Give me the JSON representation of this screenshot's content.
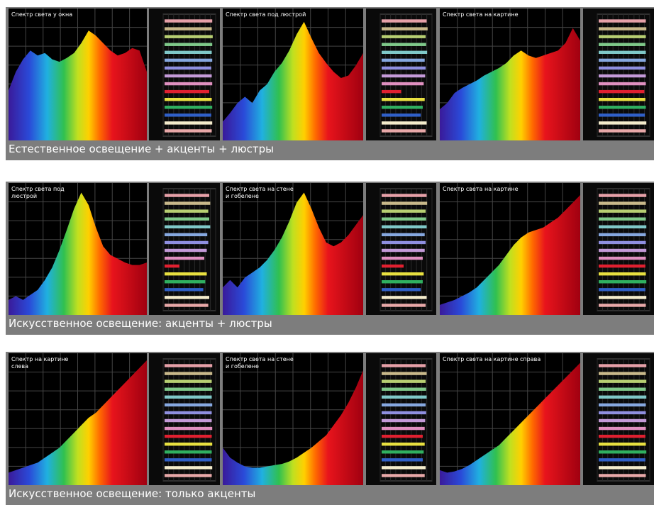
{
  "cri_colors": [
    "#e6a0a8",
    "#c8b88a",
    "#b8cf72",
    "#7fc98a",
    "#7fc8c8",
    "#86a8e0",
    "#8f8fe0",
    "#c49ad8",
    "#e090c0",
    "#e02030",
    "#e8e040",
    "#30b060",
    "#3060c8",
    "#f4eccc",
    "#e8a8a8"
  ],
  "rows": [
    {
      "caption": "Естественное освещение + акценты + люстры",
      "panels": [
        {
          "title": "Спектр света у окна",
          "spectrum": [
            40,
            55,
            65,
            72,
            68,
            70,
            65,
            63,
            66,
            70,
            78,
            88,
            84,
            78,
            72,
            68,
            70,
            74,
            72,
            55
          ],
          "cri": [
            96,
            95,
            97,
            96,
            95,
            96,
            94,
            95,
            96,
            90,
            95,
            96,
            94,
            96,
            95
          ]
        },
        {
          "title": "Спектр света под люстрой",
          "spectrum": [
            15,
            22,
            30,
            35,
            30,
            40,
            45,
            55,
            62,
            72,
            85,
            95,
            82,
            70,
            62,
            55,
            50,
            52,
            60,
            70
          ],
          "cri": [
            92,
            94,
            90,
            91,
            93,
            88,
            90,
            89,
            86,
            40,
            88,
            84,
            80,
            92,
            90
          ]
        },
        {
          "title": "Спектр света на картине",
          "spectrum": [
            25,
            30,
            38,
            42,
            45,
            48,
            52,
            55,
            58,
            62,
            68,
            72,
            68,
            66,
            68,
            70,
            72,
            78,
            90,
            80
          ],
          "cri": [
            95,
            96,
            95,
            94,
            95,
            95,
            94,
            95,
            95,
            92,
            94,
            95,
            93,
            96,
            95
          ]
        }
      ]
    },
    {
      "caption": "Искусственное освещение: акценты + люстры",
      "panels": [
        {
          "title": "Спектр света под\nлюстрой",
          "spectrum": [
            12,
            15,
            12,
            16,
            20,
            28,
            38,
            52,
            68,
            85,
            98,
            88,
            70,
            55,
            48,
            45,
            42,
            40,
            40,
            42
          ],
          "cri": [
            90,
            92,
            88,
            90,
            92,
            86,
            88,
            85,
            80,
            30,
            85,
            82,
            78,
            90,
            88
          ]
        },
        {
          "title": "Спектр света на стене\nи гобелене",
          "spectrum": [
            22,
            28,
            22,
            30,
            34,
            38,
            44,
            52,
            62,
            75,
            90,
            98,
            85,
            70,
            58,
            55,
            58,
            64,
            72,
            80
          ],
          "cri": [
            92,
            93,
            90,
            91,
            92,
            88,
            90,
            88,
            84,
            45,
            86,
            84,
            80,
            92,
            90
          ]
        },
        {
          "title": "Спектр света на картине",
          "spectrum": [
            8,
            10,
            12,
            15,
            18,
            22,
            28,
            34,
            40,
            48,
            56,
            62,
            66,
            68,
            70,
            74,
            78,
            84,
            90,
            96
          ],
          "cri": [
            96,
            95,
            96,
            95,
            96,
            95,
            95,
            96,
            95,
            94,
            95,
            96,
            94,
            96,
            95
          ]
        }
      ]
    },
    {
      "caption": "Искусственное освещение: только акценты",
      "panels": [
        {
          "title": "Спектр на картине\nслева",
          "spectrum": [
            10,
            12,
            14,
            16,
            18,
            22,
            26,
            30,
            36,
            42,
            48,
            54,
            58,
            64,
            70,
            76,
            82,
            88,
            94,
            100
          ],
          "cri": [
            96,
            96,
            95,
            96,
            95,
            96,
            95,
            95,
            96,
            95,
            96,
            95,
            95,
            96,
            95
          ]
        },
        {
          "title": "Спектр света на стене\nи гобелене",
          "spectrum": [
            30,
            22,
            18,
            15,
            14,
            14,
            15,
            16,
            17,
            19,
            22,
            26,
            30,
            35,
            40,
            48,
            56,
            66,
            78,
            92
          ],
          "cri": [
            90,
            92,
            90,
            91,
            92,
            90,
            91,
            89,
            88,
            84,
            88,
            86,
            84,
            90,
            88
          ]
        },
        {
          "title": "Спектр света на картине справа",
          "spectrum": [
            12,
            10,
            11,
            13,
            16,
            20,
            24,
            28,
            32,
            38,
            44,
            50,
            56,
            62,
            68,
            74,
            80,
            86,
            92,
            98
          ],
          "cri": [
            96,
            95,
            96,
            95,
            96,
            95,
            95,
            96,
            95,
            94,
            95,
            96,
            94,
            96,
            95
          ]
        }
      ]
    }
  ]
}
